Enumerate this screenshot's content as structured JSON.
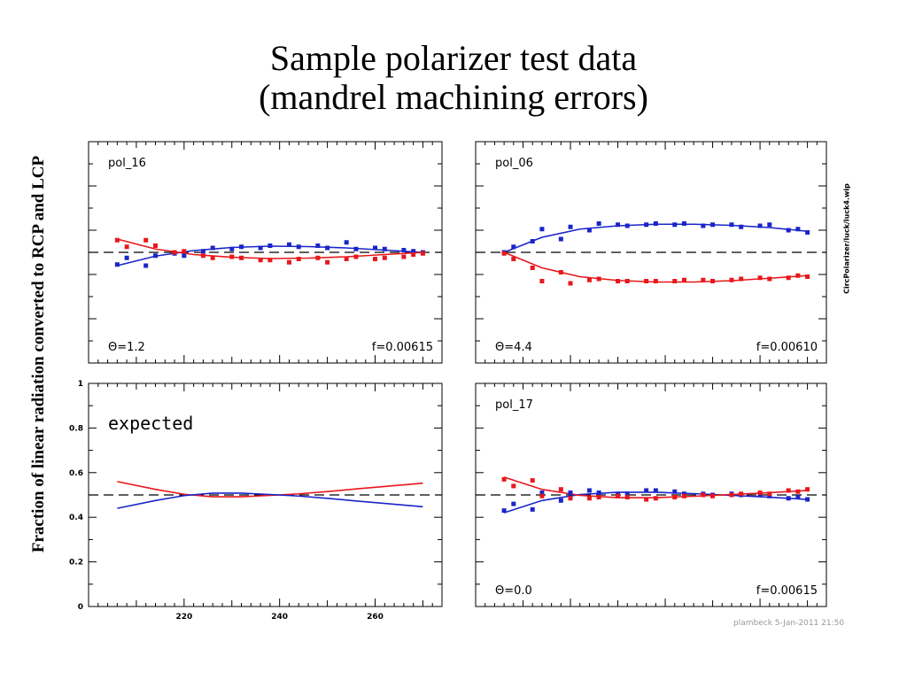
{
  "slide": {
    "title_line1": "Sample polarizer test data",
    "title_line2": "(mandrel machining errors)",
    "ylabel": "Fraction of linear radiation converted to RCP and LCP",
    "side_note": "CircPolarizer/luck/luck4.wip",
    "footer": "plambeck   5-Jan-2011 21:50"
  },
  "colors": {
    "rcp": "#e8171b",
    "lcp": "#1a25c8",
    "axis": "#000000",
    "dash": "#000000"
  },
  "chart_data": [
    {
      "type": "scatter",
      "name": "pol_16",
      "label": "pol_16",
      "theta_label": "Θ=1.2",
      "f_label": "f=0.00615",
      "xlim": [
        200,
        274
      ],
      "ylim": [
        0,
        1
      ],
      "reference": 0.5,
      "series": [
        {
          "name": "LCP",
          "color": "#1a25c8",
          "x": [
            206,
            208,
            212,
            214,
            218,
            220,
            224,
            226,
            230,
            232,
            236,
            238,
            242,
            244,
            248,
            250,
            254,
            256,
            260,
            262,
            266,
            268,
            270
          ],
          "y": [
            0.445,
            0.475,
            0.44,
            0.485,
            0.495,
            0.485,
            0.505,
            0.52,
            0.515,
            0.525,
            0.52,
            0.53,
            0.535,
            0.525,
            0.53,
            0.52,
            0.545,
            0.515,
            0.52,
            0.515,
            0.51,
            0.505,
            0.5
          ]
        },
        {
          "name": "RCP",
          "color": "#e8171b",
          "x": [
            206,
            208,
            212,
            214,
            218,
            220,
            224,
            226,
            230,
            232,
            236,
            238,
            242,
            244,
            248,
            250,
            254,
            256,
            260,
            262,
            266,
            268,
            270
          ],
          "y": [
            0.555,
            0.525,
            0.555,
            0.53,
            0.5,
            0.505,
            0.485,
            0.475,
            0.48,
            0.475,
            0.465,
            0.465,
            0.455,
            0.47,
            0.475,
            0.455,
            0.47,
            0.48,
            0.47,
            0.475,
            0.48,
            0.49,
            0.495
          ]
        }
      ],
      "fits": [
        {
          "name": "LCP fit",
          "color": "#1a25c8",
          "x": [
            206,
            214,
            222,
            230,
            238,
            246,
            254,
            262,
            270
          ],
          "y": [
            0.44,
            0.483,
            0.508,
            0.522,
            0.528,
            0.526,
            0.52,
            0.51,
            0.5
          ]
        },
        {
          "name": "RCP fit",
          "color": "#e8171b",
          "x": [
            206,
            214,
            222,
            230,
            238,
            246,
            254,
            262,
            270
          ],
          "y": [
            0.56,
            0.515,
            0.49,
            0.478,
            0.472,
            0.474,
            0.48,
            0.49,
            0.5
          ]
        }
      ]
    },
    {
      "type": "scatter",
      "name": "pol_06",
      "label": "pol_06",
      "theta_label": "Θ=4.4",
      "f_label": "f=0.00610",
      "xlim": [
        200,
        274
      ],
      "ylim": [
        0,
        1
      ],
      "reference": 0.5,
      "series": [
        {
          "name": "LCP",
          "color": "#1a25c8",
          "x": [
            206,
            208,
            212,
            214,
            218,
            220,
            224,
            226,
            230,
            232,
            236,
            238,
            242,
            244,
            248,
            250,
            254,
            256,
            260,
            262,
            266,
            268,
            270
          ],
          "y": [
            0.5,
            0.525,
            0.55,
            0.605,
            0.56,
            0.615,
            0.6,
            0.63,
            0.625,
            0.62,
            0.625,
            0.63,
            0.625,
            0.63,
            0.62,
            0.625,
            0.625,
            0.615,
            0.62,
            0.625,
            0.6,
            0.605,
            0.59
          ]
        },
        {
          "name": "RCP",
          "color": "#e8171b",
          "x": [
            206,
            208,
            212,
            214,
            218,
            220,
            224,
            226,
            230,
            232,
            236,
            238,
            242,
            244,
            248,
            250,
            254,
            256,
            260,
            262,
            266,
            268,
            270
          ],
          "y": [
            0.495,
            0.47,
            0.43,
            0.37,
            0.41,
            0.36,
            0.375,
            0.38,
            0.37,
            0.37,
            0.37,
            0.37,
            0.37,
            0.375,
            0.375,
            0.37,
            0.375,
            0.38,
            0.385,
            0.38,
            0.385,
            0.395,
            0.39
          ]
        }
      ],
      "fits": [
        {
          "name": "LCP fit",
          "color": "#1a25c8",
          "x": [
            206,
            214,
            222,
            230,
            238,
            246,
            254,
            262,
            270
          ],
          "y": [
            0.5,
            0.568,
            0.605,
            0.62,
            0.627,
            0.627,
            0.622,
            0.612,
            0.595
          ]
        },
        {
          "name": "RCP fit",
          "color": "#e8171b",
          "x": [
            206,
            214,
            222,
            230,
            238,
            246,
            254,
            262,
            270
          ],
          "y": [
            0.5,
            0.43,
            0.39,
            0.373,
            0.366,
            0.366,
            0.372,
            0.383,
            0.395
          ]
        }
      ]
    },
    {
      "type": "line",
      "name": "expected",
      "label": "expected",
      "xlim": [
        200,
        274
      ],
      "ylim": [
        0,
        1
      ],
      "reference": 0.5,
      "xticks": [
        220,
        240,
        260
      ],
      "yticks": [
        0,
        0.2,
        0.4,
        0.6,
        0.8,
        1
      ],
      "ytick_labels": [
        "0",
        "0.2",
        "0.4",
        "0.6",
        "0.8",
        "1"
      ],
      "series": [
        {
          "name": "RCP",
          "color": "#e8171b",
          "x": [
            206,
            214,
            220,
            226,
            232,
            238,
            244,
            250,
            256,
            262,
            270
          ],
          "y": [
            0.56,
            0.525,
            0.503,
            0.492,
            0.492,
            0.498,
            0.505,
            0.515,
            0.527,
            0.538,
            0.553
          ]
        },
        {
          "name": "LCP",
          "color": "#1a25c8",
          "x": [
            206,
            214,
            220,
            226,
            232,
            238,
            244,
            250,
            256,
            262,
            270
          ],
          "y": [
            0.44,
            0.475,
            0.497,
            0.508,
            0.508,
            0.502,
            0.495,
            0.485,
            0.473,
            0.462,
            0.447
          ]
        }
      ]
    },
    {
      "type": "scatter",
      "name": "pol_17",
      "label": "pol_17",
      "theta_label": "Θ=0.0",
      "f_label": "f=0.00615",
      "xlim": [
        200,
        274
      ],
      "ylim": [
        0,
        1
      ],
      "reference": 0.5,
      "series": [
        {
          "name": "LCP",
          "color": "#1a25c8",
          "x": [
            206,
            208,
            212,
            214,
            218,
            220,
            224,
            226,
            230,
            232,
            236,
            238,
            242,
            244,
            248,
            250,
            254,
            256,
            260,
            262,
            266,
            268,
            270
          ],
          "y": [
            0.43,
            0.46,
            0.435,
            0.51,
            0.475,
            0.51,
            0.52,
            0.51,
            0.5,
            0.505,
            0.52,
            0.52,
            0.515,
            0.505,
            0.505,
            0.5,
            0.505,
            0.5,
            0.5,
            0.495,
            0.485,
            0.49,
            0.48
          ]
        },
        {
          "name": "RCP",
          "color": "#e8171b",
          "x": [
            206,
            208,
            212,
            214,
            218,
            220,
            224,
            226,
            230,
            232,
            236,
            238,
            242,
            244,
            248,
            250,
            254,
            256,
            260,
            262,
            266,
            268,
            270
          ],
          "y": [
            0.57,
            0.54,
            0.565,
            0.495,
            0.525,
            0.485,
            0.485,
            0.49,
            0.495,
            0.49,
            0.48,
            0.485,
            0.49,
            0.495,
            0.5,
            0.495,
            0.5,
            0.505,
            0.51,
            0.505,
            0.52,
            0.515,
            0.525
          ]
        }
      ],
      "fits": [
        {
          "name": "LCP fit",
          "color": "#1a25c8",
          "x": [
            206,
            214,
            222,
            230,
            238,
            246,
            254,
            262,
            270
          ],
          "y": [
            0.42,
            0.475,
            0.502,
            0.512,
            0.512,
            0.506,
            0.498,
            0.49,
            0.48
          ]
        },
        {
          "name": "RCP fit",
          "color": "#e8171b",
          "x": [
            206,
            214,
            222,
            230,
            238,
            246,
            254,
            262,
            270
          ],
          "y": [
            0.58,
            0.525,
            0.498,
            0.488,
            0.488,
            0.494,
            0.502,
            0.51,
            0.52
          ]
        }
      ]
    }
  ]
}
